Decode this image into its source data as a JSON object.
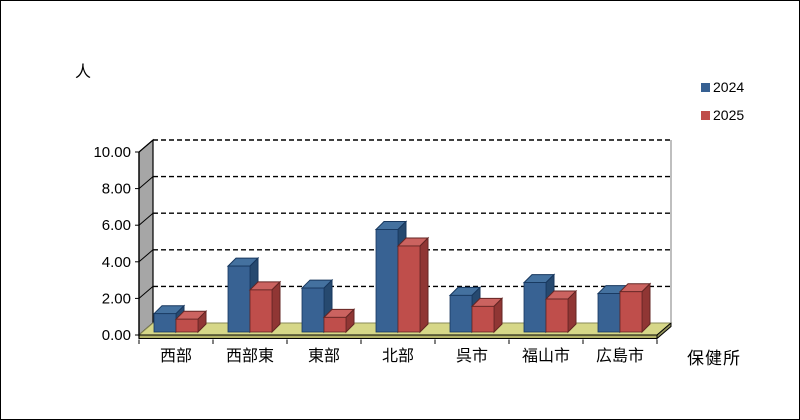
{
  "chart_data": {
    "type": "bar",
    "variant": "3d-clustered-column",
    "title": "",
    "ylabel": "人",
    "xlabel": "保健所",
    "categories": [
      "西部",
      "西部東",
      "東部",
      "北部",
      "呉市",
      "福山市",
      "広島市"
    ],
    "series": [
      {
        "name": "2024",
        "color": "#386293",
        "color_top": "#44719F",
        "color_side": "#26496F",
        "outline": "#17375E",
        "values": [
          1.0,
          3.6,
          2.4,
          5.6,
          2.0,
          2.7,
          2.1
        ]
      },
      {
        "name": "2025",
        "color": "#BF4E4B",
        "color_top": "#CB6360",
        "color_side": "#903634",
        "outline": "#632523",
        "values": [
          0.7,
          2.3,
          0.8,
          4.7,
          1.4,
          1.8,
          2.2
        ]
      }
    ],
    "ylim": [
      0,
      10
    ],
    "ytick_step": 2,
    "ytick_labels": [
      "0.00",
      "2.00",
      "4.00",
      "6.00",
      "8.00",
      "10.00"
    ],
    "grid": "dashed-horizontal",
    "legend_position": "top-right",
    "walls": {
      "side": "#A6A6A6",
      "floor": "#D6D788",
      "floor_edge_front": "#B2B268",
      "floor_edge_right": "#93945C",
      "back": "#FFFFFF",
      "edge_line": "#8A8B58"
    }
  }
}
